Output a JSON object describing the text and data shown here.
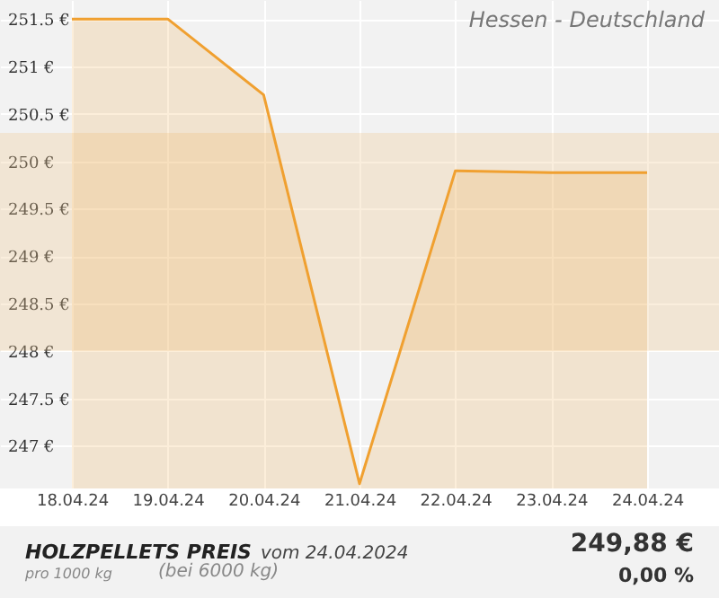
{
  "chart_data": {
    "type": "area",
    "title": "HOLZPELLETS PREIS",
    "subtitle": "vom 24.04.2024",
    "categories": [
      "18.04.24",
      "19.04.24",
      "20.04.24",
      "21.04.24",
      "22.04.24",
      "23.04.24",
      "24.04.24"
    ],
    "series": [
      {
        "color": "#f0a030",
        "values": [
          251.5,
          251.5,
          250.7,
          246.6,
          249.9,
          249.88,
          249.88
        ]
      }
    ],
    "ylim": [
      246.55,
      251.7
    ],
    "yticks": [
      {
        "value": 247,
        "label": "247 €"
      },
      {
        "value": 247.5,
        "label": "247.5 €"
      },
      {
        "value": 248,
        "label": "248 €"
      },
      {
        "value": 248.5,
        "label": "248.5 €"
      },
      {
        "value": 249,
        "label": "249 €"
      },
      {
        "value": 249.5,
        "label": "249.5 €"
      },
      {
        "value": 250,
        "label": "250 €"
      },
      {
        "value": 250.5,
        "label": "250.5 €"
      },
      {
        "value": 251,
        "label": "251 €"
      },
      {
        "value": 251.5,
        "label": "251.5 €"
      }
    ],
    "bands": [
      {
        "axis": "y",
        "from": 248,
        "to": 250.3,
        "color": "#f0c890"
      }
    ],
    "annotations": [
      "Hessen - Deutschland",
      "pro 1000 kg",
      "(bei 6000 kg)",
      "249,88 €",
      "0,00 %"
    ],
    "grid": true,
    "marker": "none",
    "line_style": "solid"
  }
}
